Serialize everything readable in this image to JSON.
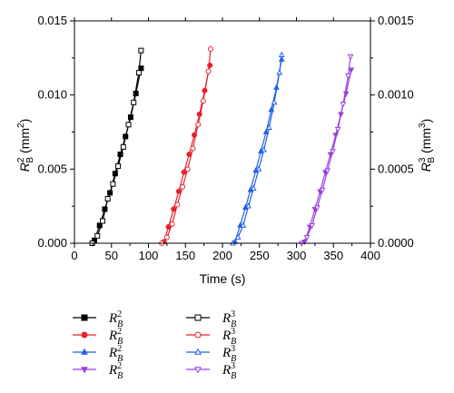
{
  "chart_data": {
    "type": "line",
    "xlabel": "Time (s)",
    "ylabel_left_base": "R",
    "ylabel_left_sub": "B",
    "ylabel_left_sup": "2",
    "ylabel_left_unit_prefix": "(mm",
    "ylabel_left_unit_sup": "2",
    "ylabel_left_unit_suffix": ")",
    "ylabel_right_base": "R",
    "ylabel_right_sub": "B",
    "ylabel_right_sup": "3",
    "ylabel_right_unit_prefix": "(mm",
    "ylabel_right_unit_sup": "3",
    "ylabel_right_unit_suffix": ")",
    "xlim": [
      0,
      400
    ],
    "ylim_left": [
      0,
      0.015
    ],
    "ylim_right": [
      0,
      0.0015
    ],
    "x_ticks": [
      "0",
      "50",
      "100",
      "150",
      "200",
      "250",
      "300",
      "350",
      "400"
    ],
    "y_left_ticks": [
      "0.000",
      "0.005",
      "0.010",
      "0.015"
    ],
    "y_right_ticks": [
      "0.0000",
      "0.0005",
      "0.0010",
      "0.0015"
    ],
    "grid": false,
    "legend_position": "below",
    "series": [
      {
        "legend_base": "R",
        "legend_sub": "B",
        "legend_sup": "2",
        "axis": "left",
        "color": "#000000",
        "marker": "square",
        "filled": true,
        "x": [
          27,
          34,
          41,
          48,
          55,
          62,
          69,
          76,
          83,
          90
        ],
        "y": [
          0.0002,
          0.0012,
          0.0023,
          0.0034,
          0.0047,
          0.006,
          0.0072,
          0.0085,
          0.0101,
          0.0118
        ]
      },
      {
        "legend_base": "R",
        "legend_sub": "B",
        "legend_sup": "3",
        "axis": "right",
        "color": "#000000",
        "marker": "square",
        "filled": false,
        "x": [
          24,
          31,
          38,
          45,
          52,
          59,
          66,
          73,
          80,
          87,
          90
        ],
        "y": [
          0.0,
          5e-05,
          0.00015,
          0.0003,
          0.0004,
          0.00052,
          0.00065,
          0.0008,
          0.00095,
          0.00115,
          0.0013
        ]
      },
      {
        "legend_base": "R",
        "legend_sub": "B",
        "legend_sup": "2",
        "axis": "left",
        "color": "#e8212a",
        "marker": "circle",
        "filled": true,
        "x": [
          121,
          127,
          134,
          141,
          148,
          155,
          162,
          169,
          176,
          183
        ],
        "y": [
          0.0001,
          0.0011,
          0.0023,
          0.0035,
          0.0048,
          0.006,
          0.0073,
          0.0087,
          0.0103,
          0.012
        ]
      },
      {
        "legend_base": "R",
        "legend_sub": "B",
        "legend_sup": "3",
        "axis": "right",
        "color": "#e8212a",
        "marker": "circle",
        "filled": false,
        "x": [
          118,
          125,
          132,
          139,
          146,
          153,
          160,
          167,
          174,
          181,
          184
        ],
        "y": [
          0.0,
          4e-05,
          0.00013,
          0.00026,
          0.00038,
          0.0005,
          0.00064,
          0.0008,
          0.00096,
          0.00116,
          0.00131
        ]
      },
      {
        "legend_base": "R",
        "legend_sub": "B",
        "legend_sup": "2",
        "axis": "left",
        "color": "#2160e8",
        "marker": "triangle-up",
        "filled": true,
        "x": [
          217,
          224,
          231,
          238,
          245,
          252,
          259,
          266,
          273,
          280
        ],
        "y": [
          0.0001,
          0.0012,
          0.0024,
          0.0036,
          0.0049,
          0.0062,
          0.0075,
          0.009,
          0.0105,
          0.0124
        ]
      },
      {
        "legend_base": "R",
        "legend_sub": "B",
        "legend_sup": "3",
        "axis": "right",
        "color": "#2160e8",
        "marker": "triangle-up",
        "filled": false,
        "x": [
          214,
          221,
          228,
          235,
          242,
          249,
          256,
          263,
          270,
          277,
          280
        ],
        "y": [
          0.0,
          4e-05,
          0.00012,
          0.00025,
          0.00037,
          0.0005,
          0.00063,
          0.00078,
          0.00095,
          0.00115,
          0.00127
        ]
      },
      {
        "legend_base": "R",
        "legend_sub": "B",
        "legend_sup": "2",
        "axis": "left",
        "color": "#9b3fe0",
        "marker": "triangle-down",
        "filled": true,
        "x": [
          311,
          318,
          325,
          332,
          339,
          346,
          353,
          360,
          367,
          374
        ],
        "y": [
          0.0001,
          0.0011,
          0.0023,
          0.0035,
          0.0048,
          0.006,
          0.0073,
          0.0087,
          0.0101,
          0.0117
        ]
      },
      {
        "legend_base": "R",
        "legend_sub": "B",
        "legend_sup": "3",
        "axis": "right",
        "color": "#9b3fe0",
        "marker": "triangle-down",
        "filled": false,
        "x": [
          307,
          314,
          321,
          328,
          335,
          342,
          349,
          356,
          363,
          370,
          373
        ],
        "y": [
          0.0,
          4e-05,
          0.00012,
          0.00024,
          0.00036,
          0.00049,
          0.00062,
          0.00077,
          0.00094,
          0.00113,
          0.00126
        ]
      }
    ]
  }
}
